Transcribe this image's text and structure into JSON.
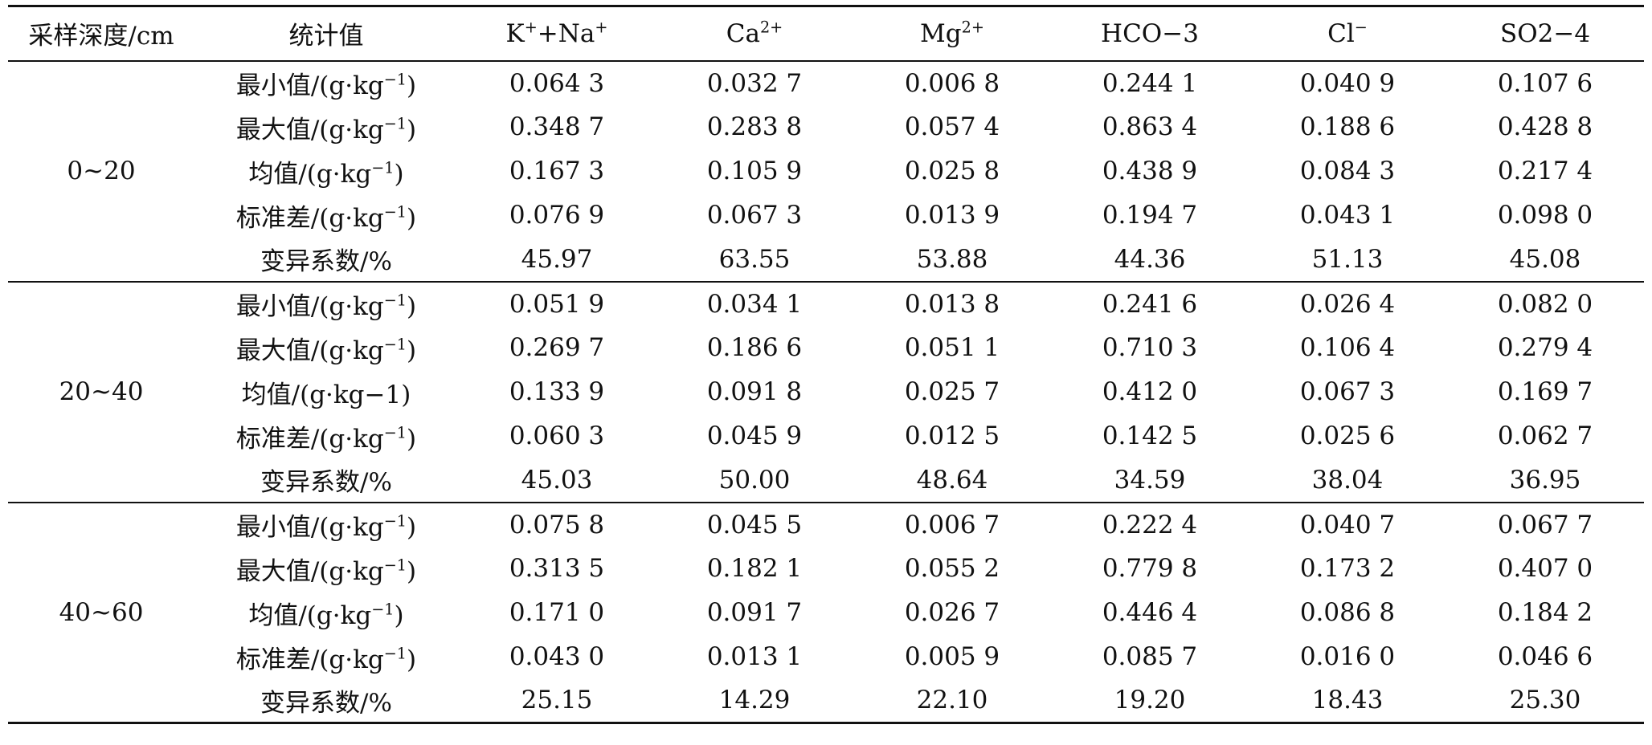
{
  "headers": {
    "depth": "采样深度/cm",
    "stat": "统计值",
    "ions": [
      {
        "base": "K",
        "sup": "+",
        "mid": "+Na",
        "sup2": "+"
      },
      {
        "base": "Ca",
        "sup": "2+"
      },
      {
        "base": "Mg",
        "sup": "2+"
      },
      {
        "base": "HCO",
        "sup": "−",
        "sub": "3"
      },
      {
        "base": "Cl",
        "sup": "−"
      },
      {
        "base": "SO",
        "sup": "2−",
        "sub": "4"
      }
    ]
  },
  "groups": [
    {
      "depth": "0~20",
      "rows": [
        {
          "stat_prefix": "最小值/(g·kg",
          "stat_sup": "−1",
          "stat_suffix": ")",
          "values": [
            "0.064 3",
            "0.032 7",
            "0.006 8",
            "0.244 1",
            "0.040 9",
            "0.107 6"
          ]
        },
        {
          "stat_prefix": "最大值/(g·kg",
          "stat_sup": "−1",
          "stat_suffix": ")",
          "values": [
            "0.348 7",
            "0.283 8",
            "0.057 4",
            "0.863 4",
            "0.188 6",
            "0.428 8"
          ]
        },
        {
          "stat_prefix": "均值/(g·kg",
          "stat_sup": "−1",
          "stat_suffix": ")",
          "values": [
            "0.167 3",
            "0.105 9",
            "0.025 8",
            "0.438 9",
            "0.084 3",
            "0.217 4"
          ]
        },
        {
          "stat_prefix": "标准差/(g·kg",
          "stat_sup": "−1",
          "stat_suffix": ")",
          "values": [
            "0.076 9",
            "0.067 3",
            "0.013 9",
            "0.194 7",
            "0.043 1",
            "0.098 0"
          ]
        },
        {
          "stat_prefix": "变异系数/%",
          "stat_sup": "",
          "stat_suffix": "",
          "values": [
            "45.97",
            "63.55",
            "53.88",
            "44.36",
            "51.13",
            "45.08"
          ]
        }
      ]
    },
    {
      "depth": "20~40",
      "rows": [
        {
          "stat_prefix": "最小值/(g·kg",
          "stat_sup": "−1",
          "stat_suffix": ")",
          "values": [
            "0.051 9",
            "0.034 1",
            "0.013 8",
            "0.241 6",
            "0.026 4",
            "0.082 0"
          ]
        },
        {
          "stat_prefix": "最大值/(g·kg",
          "stat_sup": "−1",
          "stat_suffix": ")",
          "values": [
            "0.269 7",
            "0.186 6",
            "0.051 1",
            "0.710 3",
            "0.106 4",
            "0.279 4"
          ]
        },
        {
          "stat_prefix": "均值/(g·kg−1)",
          "stat_sup": "",
          "stat_suffix": "",
          "values": [
            "0.133 9",
            "0.091 8",
            "0.025 7",
            "0.412 0",
            "0.067 3",
            "0.169 7"
          ]
        },
        {
          "stat_prefix": "标准差/(g·kg",
          "stat_sup": "−1",
          "stat_suffix": ")",
          "values": [
            "0.060 3",
            "0.045 9",
            "0.012 5",
            "0.142 5",
            "0.025 6",
            "0.062 7"
          ]
        },
        {
          "stat_prefix": "变异系数/%",
          "stat_sup": "",
          "stat_suffix": "",
          "values": [
            "45.03",
            "50.00",
            "48.64",
            "34.59",
            "38.04",
            "36.95"
          ]
        }
      ]
    },
    {
      "depth": "40~60",
      "rows": [
        {
          "stat_prefix": "最小值/(g·kg",
          "stat_sup": "−1",
          "stat_suffix": ")",
          "values": [
            "0.075 8",
            "0.045 5",
            "0.006 7",
            "0.222 4",
            "0.040 7",
            "0.067 7"
          ]
        },
        {
          "stat_prefix": "最大值/(g·kg",
          "stat_sup": "−1",
          "stat_suffix": ")",
          "values": [
            "0.313 5",
            "0.182 1",
            "0.055 2",
            "0.779 8",
            "0.173 2",
            "0.407 0"
          ]
        },
        {
          "stat_prefix": "均值/(g·kg",
          "stat_sup": "−1",
          "stat_suffix": ")",
          "values": [
            "0.171 0",
            "0.091 7",
            "0.026 7",
            "0.446 4",
            "0.086 8",
            "0.184 2"
          ]
        },
        {
          "stat_prefix": "标准差/(g·kg",
          "stat_sup": "−1",
          "stat_suffix": ")",
          "values": [
            "0.043 0",
            "0.013 1",
            "0.005 9",
            "0.085 7",
            "0.016 0",
            "0.046 6"
          ]
        },
        {
          "stat_prefix": "变异系数/%",
          "stat_sup": "",
          "stat_suffix": "",
          "values": [
            "25.15",
            "14.29",
            "22.10",
            "19.20",
            "18.43",
            "25.30"
          ]
        }
      ]
    }
  ]
}
